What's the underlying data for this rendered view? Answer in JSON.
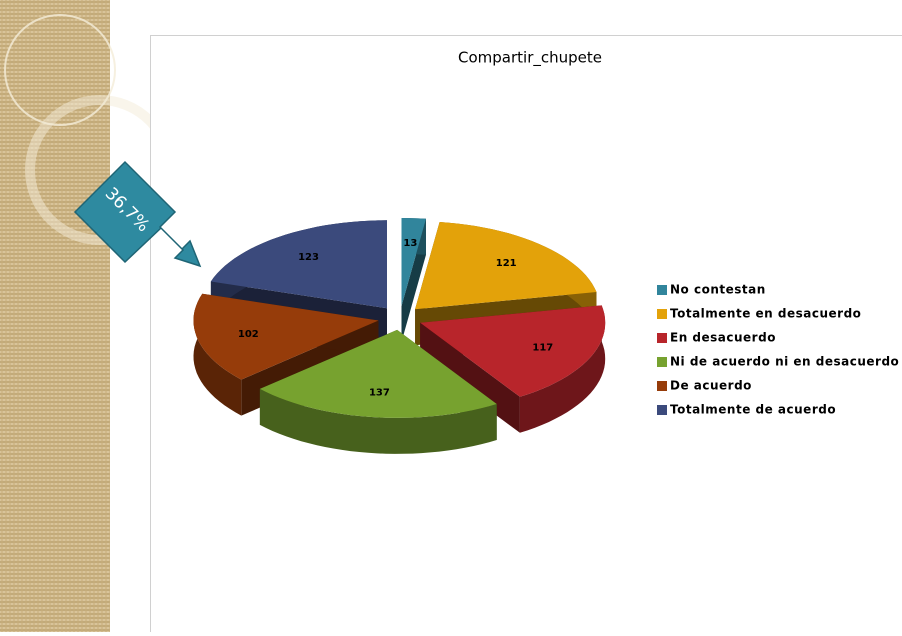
{
  "chart_data": {
    "type": "pie",
    "title": "Compartir_chupete",
    "annotation": "36,7%",
    "categories": [
      "No contestan",
      "Totalmente en desacuerdo",
      "En desacuerdo",
      "Ni de acuerdo ni en desacuerdo",
      "De acuerdo",
      "Totalmente de acuerdo"
    ],
    "series": [
      {
        "name": "Compartir_chupete",
        "values": [
          13,
          121,
          117,
          137,
          102,
          123
        ],
        "colors": [
          "#31859c",
          "#e3a20a",
          "#b8252b",
          "#77a22f",
          "#963c0a",
          "#3b4a7c"
        ]
      }
    ],
    "legend": "right"
  }
}
